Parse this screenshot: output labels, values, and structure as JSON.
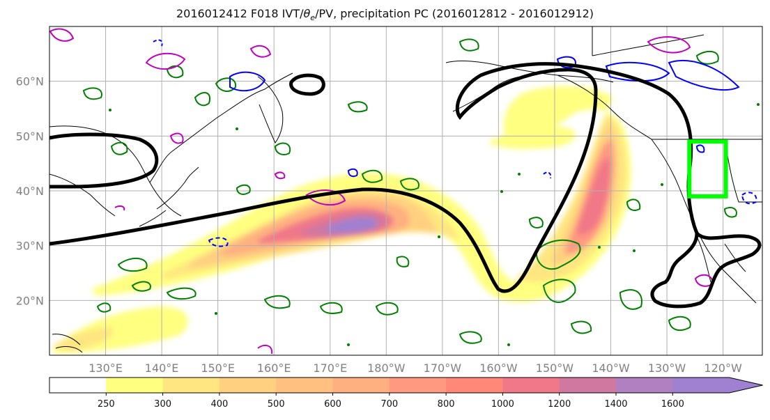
{
  "title_parts": {
    "prefix": "2016012412 F018 IVT/",
    "theta": "θ",
    "theta_sub": "e",
    "suffix": "/PV, precipitation PC (2016012812 - 2016012912)"
  },
  "map": {
    "lat_ticks": [
      20,
      30,
      40,
      50,
      60
    ],
    "lat_labels": [
      "20°N",
      "30°N",
      "40°N",
      "50°N",
      "60°N"
    ],
    "lon_ticks": [
      130,
      140,
      150,
      160,
      170,
      180,
      190,
      200,
      210,
      220,
      230,
      240
    ],
    "lon_labels": [
      "130°E",
      "140°E",
      "150°E",
      "160°E",
      "170°E",
      "180°W",
      "170°W",
      "160°W",
      "150°W",
      "140°W",
      "130°W",
      "120°W"
    ],
    "lon_range": [
      120,
      247
    ],
    "lat_range": [
      10,
      70
    ],
    "highlight_box": {
      "lon_min": 234,
      "lon_max": 240.5,
      "lat_min": 39,
      "lat_max": 49,
      "color": "#00ff00"
    }
  },
  "colorbar": {
    "levels": [
      250,
      300,
      400,
      500,
      600,
      700,
      800,
      1000,
      1200,
      1400,
      1600
    ],
    "colors": [
      "#ffffff",
      "#ffff80",
      "#ffe680",
      "#ffd080",
      "#ffc080",
      "#ffb080",
      "#ff9a80",
      "#ff8878",
      "#f07888",
      "#d078a0",
      "#b080c0",
      "#a080d0"
    ],
    "extend": "max"
  },
  "colors": {
    "pv_contour": "#000000",
    "theta_green": "#008000",
    "theta_blue": "#0000ff",
    "theta_magenta": "#c000c0",
    "coast": "#000000",
    "grid": "#b0b0b0"
  }
}
